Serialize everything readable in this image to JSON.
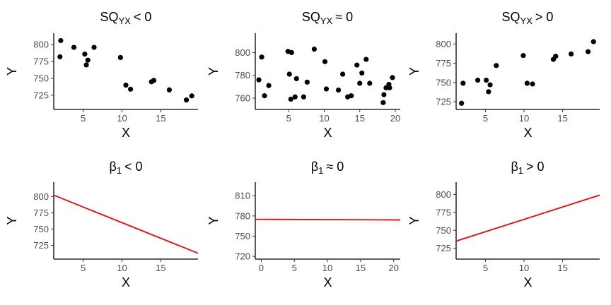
{
  "chart_data": [
    {
      "type": "scatter",
      "title": {
        "main": "SQ",
        "sub": "YX",
        "rel": "< 0"
      },
      "xlabel": "X",
      "ylabel": "Y",
      "xlim": [
        1.2,
        19.8
      ],
      "ylim": [
        704,
        817
      ],
      "xticks": [
        5,
        10,
        15
      ],
      "yticks": [
        725,
        750,
        775,
        800
      ],
      "grid": false,
      "points": [
        {
          "x": 2.0,
          "y": 782
        },
        {
          "x": 2.1,
          "y": 806
        },
        {
          "x": 3.8,
          "y": 796
        },
        {
          "x": 5.2,
          "y": 786
        },
        {
          "x": 5.4,
          "y": 770
        },
        {
          "x": 5.6,
          "y": 777
        },
        {
          "x": 6.4,
          "y": 796
        },
        {
          "x": 9.8,
          "y": 781
        },
        {
          "x": 10.5,
          "y": 740
        },
        {
          "x": 11.1,
          "y": 734
        },
        {
          "x": 13.8,
          "y": 745
        },
        {
          "x": 14.1,
          "y": 747
        },
        {
          "x": 16.1,
          "y": 733
        },
        {
          "x": 18.3,
          "y": 718
        },
        {
          "x": 19.0,
          "y": 724
        }
      ]
    },
    {
      "type": "scatter",
      "title": {
        "main": "SQ",
        "sub": "YX",
        "rel": "≈ 0"
      },
      "xlabel": "X",
      "ylabel": "Y",
      "xlim": [
        0.3,
        20.7
      ],
      "ylim": [
        750,
        817
      ],
      "xticks": [
        5,
        10,
        15,
        20
      ],
      "yticks": [
        760,
        780,
        800
      ],
      "grid": false,
      "points": [
        {
          "x": 0.8,
          "y": 776
        },
        {
          "x": 1.2,
          "y": 796
        },
        {
          "x": 1.6,
          "y": 762
        },
        {
          "x": 2.2,
          "y": 771
        },
        {
          "x": 4.9,
          "y": 801
        },
        {
          "x": 5.1,
          "y": 781
        },
        {
          "x": 5.3,
          "y": 759
        },
        {
          "x": 5.4,
          "y": 800
        },
        {
          "x": 5.9,
          "y": 761
        },
        {
          "x": 6.1,
          "y": 777
        },
        {
          "x": 7.1,
          "y": 761
        },
        {
          "x": 7.6,
          "y": 774
        },
        {
          "x": 8.6,
          "y": 803
        },
        {
          "x": 10.1,
          "y": 792
        },
        {
          "x": 10.3,
          "y": 768
        },
        {
          "x": 12.0,
          "y": 767
        },
        {
          "x": 12.6,
          "y": 781
        },
        {
          "x": 13.3,
          "y": 761
        },
        {
          "x": 13.8,
          "y": 762
        },
        {
          "x": 14.6,
          "y": 789
        },
        {
          "x": 15.0,
          "y": 773
        },
        {
          "x": 15.3,
          "y": 782
        },
        {
          "x": 15.9,
          "y": 794
        },
        {
          "x": 16.4,
          "y": 773
        },
        {
          "x": 18.3,
          "y": 756
        },
        {
          "x": 18.4,
          "y": 763
        },
        {
          "x": 18.7,
          "y": 769
        },
        {
          "x": 19.1,
          "y": 772
        },
        {
          "x": 19.2,
          "y": 769
        },
        {
          "x": 19.6,
          "y": 778
        }
      ]
    },
    {
      "type": "scatter",
      "title": {
        "main": "SQ",
        "sub": "YX",
        "rel": "> 0"
      },
      "xlabel": "X",
      "ylabel": "Y",
      "xlim": [
        1.2,
        19.8
      ],
      "ylim": [
        715,
        814
      ],
      "xticks": [
        5,
        10,
        15
      ],
      "yticks": [
        725,
        750,
        775,
        800
      ],
      "grid": false,
      "points": [
        {
          "x": 1.9,
          "y": 723
        },
        {
          "x": 2.1,
          "y": 749
        },
        {
          "x": 4.0,
          "y": 753
        },
        {
          "x": 5.1,
          "y": 753
        },
        {
          "x": 5.4,
          "y": 738
        },
        {
          "x": 5.6,
          "y": 747
        },
        {
          "x": 6.4,
          "y": 772
        },
        {
          "x": 9.9,
          "y": 785
        },
        {
          "x": 10.4,
          "y": 749
        },
        {
          "x": 11.1,
          "y": 748
        },
        {
          "x": 13.8,
          "y": 780
        },
        {
          "x": 14.1,
          "y": 784
        },
        {
          "x": 16.1,
          "y": 787
        },
        {
          "x": 18.3,
          "y": 790
        },
        {
          "x": 19.0,
          "y": 803
        }
      ]
    },
    {
      "type": "line",
      "title": {
        "main": "β",
        "sub": "1",
        "rel": "< 0"
      },
      "xlabel": "X",
      "ylabel": "Y",
      "xlim": [
        1.2,
        19.8
      ],
      "ylim": [
        704,
        822
      ],
      "xticks": [
        5,
        10,
        15
      ],
      "yticks": [
        725,
        750,
        775,
        800
      ],
      "grid": false,
      "series": [
        {
          "color": "#ff0000",
          "x": [
            1.2,
            19.8
          ],
          "y": [
            802,
            713
          ]
        }
      ]
    },
    {
      "type": "line",
      "title": {
        "main": "β",
        "sub": "1",
        "rel": "≈ 0"
      },
      "xlabel": "X",
      "ylabel": "Y",
      "xlim": [
        -0.9,
        21.0
      ],
      "ylim": [
        716,
        830
      ],
      "xticks": [
        0,
        5,
        10,
        15,
        20
      ],
      "yticks": [
        720,
        750,
        780,
        810
      ],
      "grid": false,
      "series": [
        {
          "color": "#ff0000",
          "x": [
            -0.9,
            21.0
          ],
          "y": [
            775,
            774
          ]
        }
      ]
    },
    {
      "type": "line",
      "title": {
        "main": "β",
        "sub": "1",
        "rel": "> 0"
      },
      "xlabel": "X",
      "ylabel": "Y",
      "xlim": [
        1.2,
        19.8
      ],
      "ylim": [
        710,
        817
      ],
      "xticks": [
        5,
        10,
        15
      ],
      "yticks": [
        725,
        750,
        775,
        800
      ],
      "grid": false,
      "series": [
        {
          "color": "#ff0000",
          "x": [
            1.2,
            19.8
          ],
          "y": [
            735,
            799
          ]
        }
      ]
    }
  ]
}
